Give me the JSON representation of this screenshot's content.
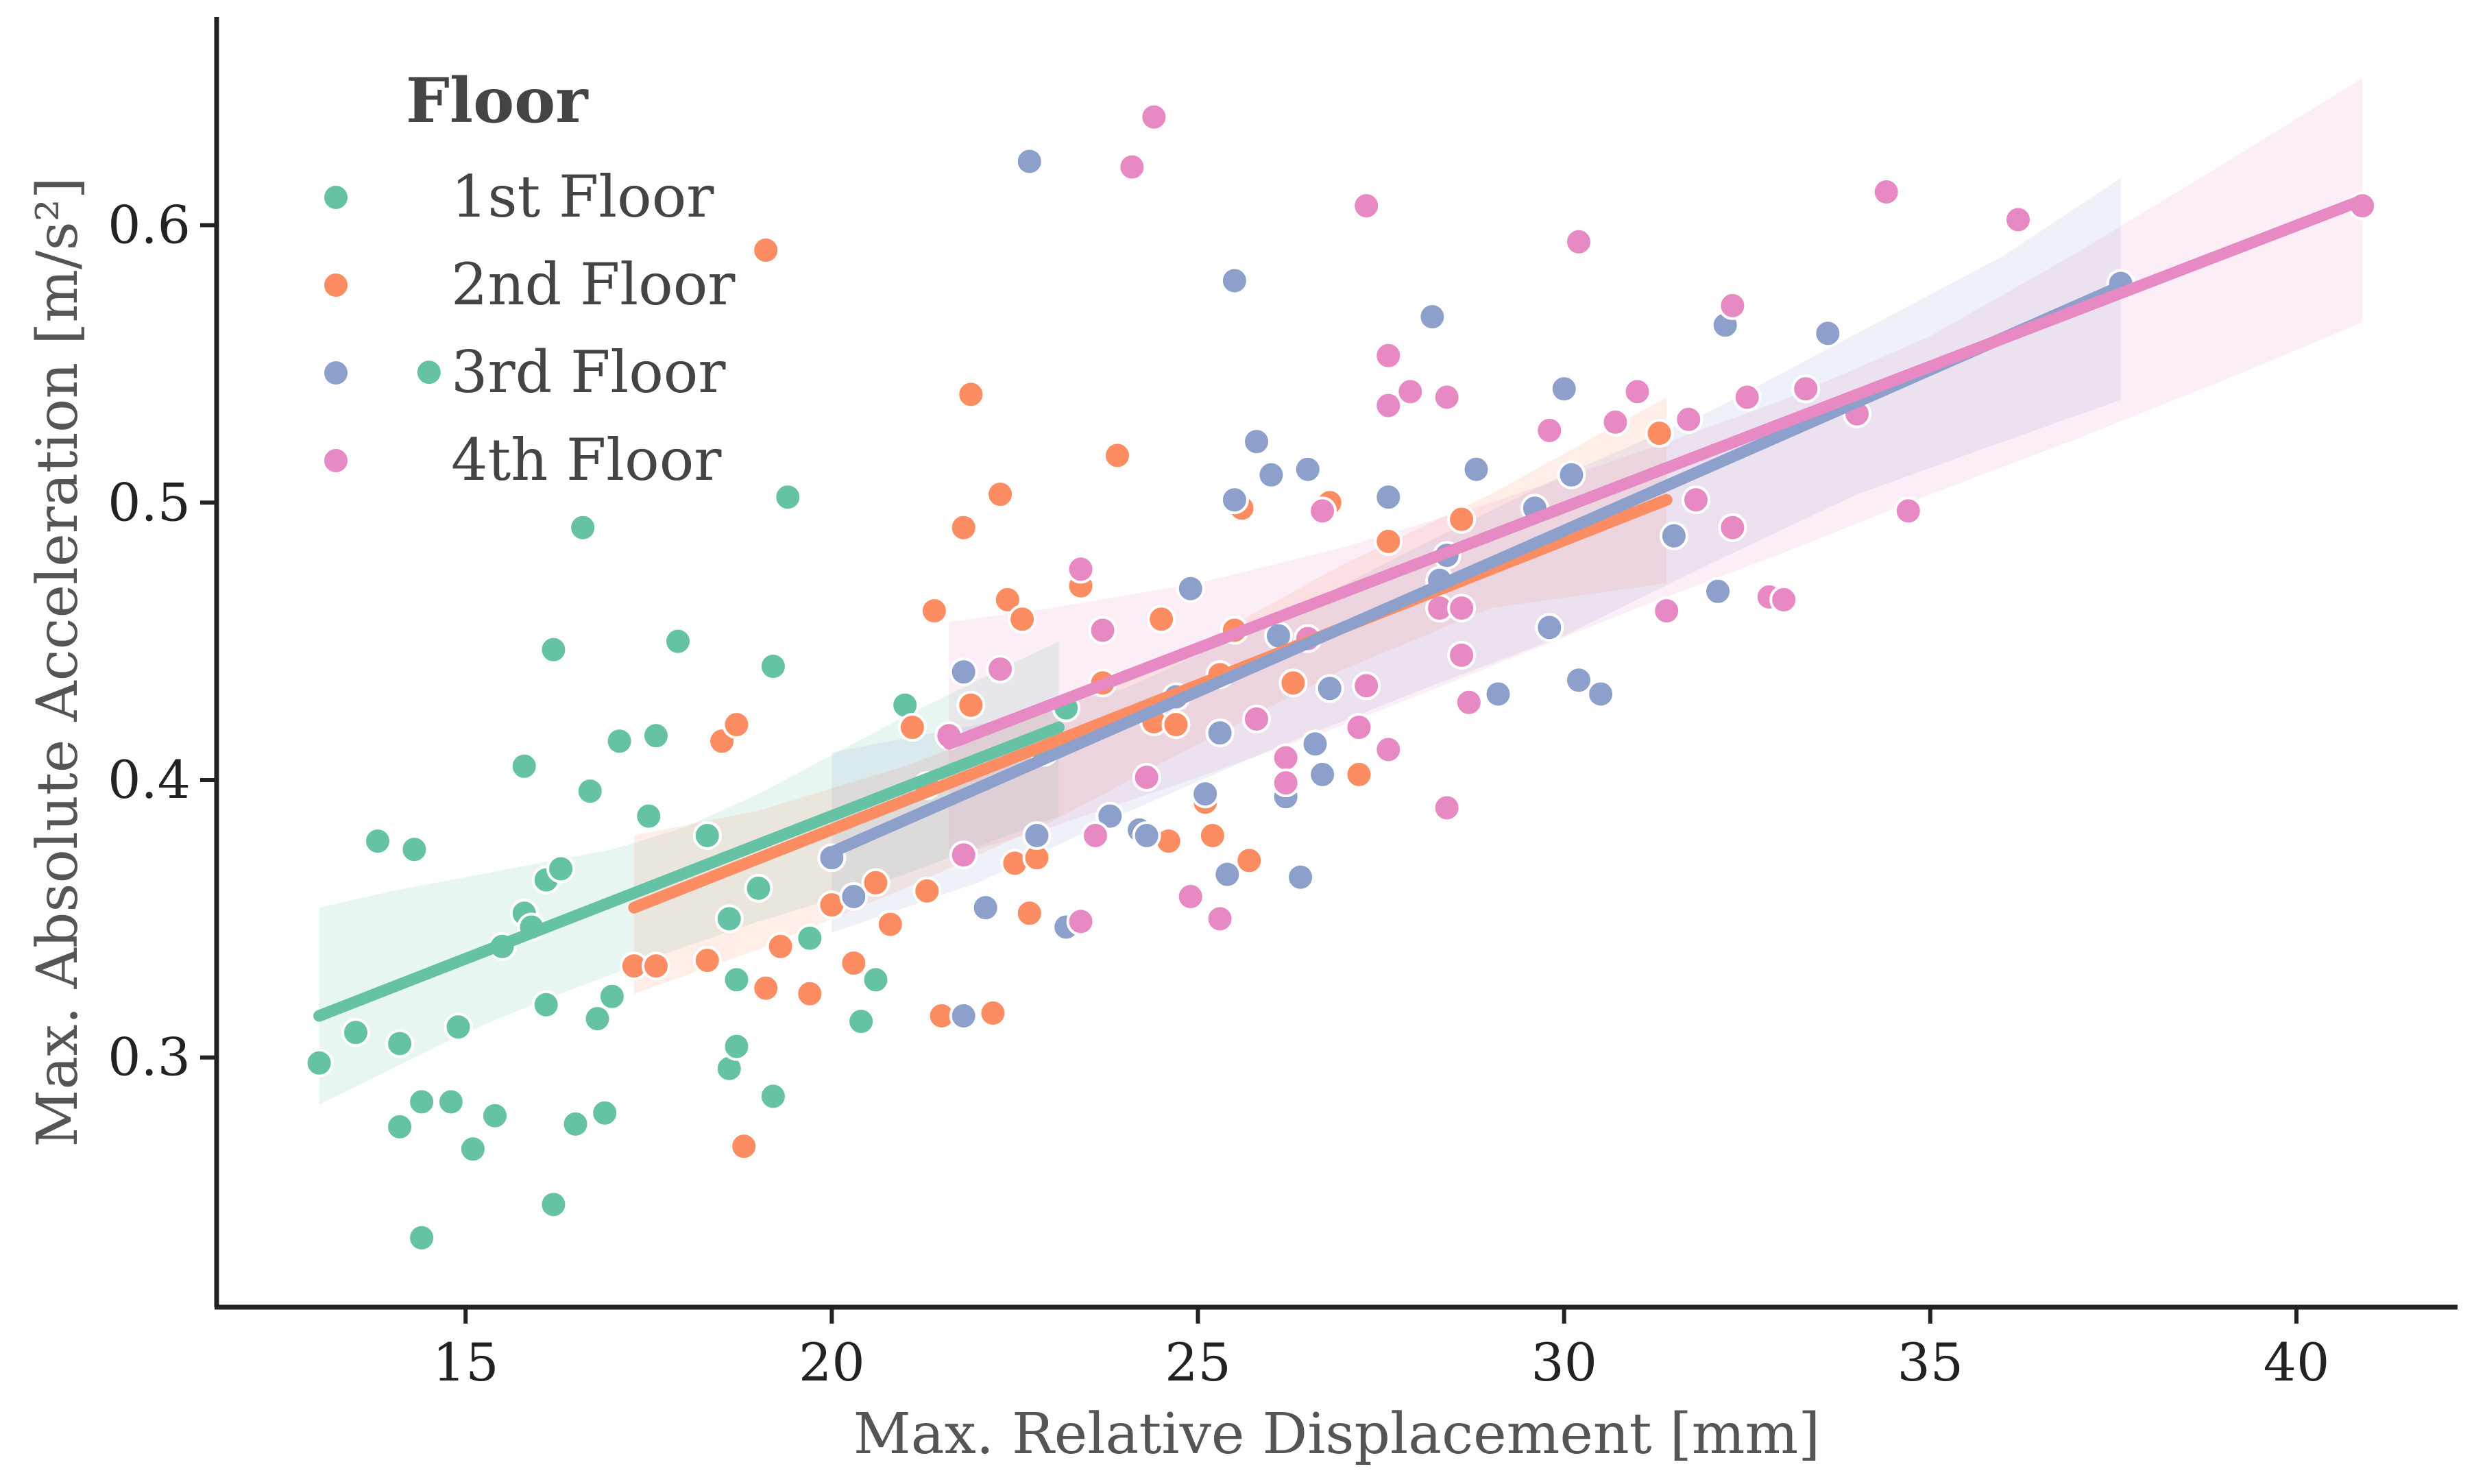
{
  "chart_data": {
    "type": "scatter",
    "title": "",
    "xlabel": "Max. Relative Displacement [mm]",
    "ylabel": "Max. Absolute Acceleration [m/s²]",
    "xlim": [
      11.6,
      42.2
    ],
    "ylim": [
      0.21,
      0.675
    ],
    "xticks": [
      15,
      20,
      25,
      30,
      35,
      40
    ],
    "yticks": [
      0.3,
      0.4,
      0.5,
      0.6
    ],
    "xtick_labels": [
      "15",
      "20",
      "25",
      "30",
      "35",
      "40"
    ],
    "ytick_labels": [
      "0.3",
      "0.4",
      "0.5",
      "0.6"
    ],
    "grid": false,
    "legend": {
      "title": "Floor",
      "position": "top-left"
    },
    "series": [
      {
        "name": "1st Floor",
        "color": "#66c2a5",
        "points": [
          [
            13.0,
            0.298
          ],
          [
            13.5,
            0.309
          ],
          [
            13.8,
            0.378
          ],
          [
            14.1,
            0.305
          ],
          [
            14.1,
            0.275
          ],
          [
            14.3,
            0.375
          ],
          [
            14.4,
            0.235
          ],
          [
            14.4,
            0.284
          ],
          [
            14.5,
            0.547
          ],
          [
            14.8,
            0.284
          ],
          [
            14.9,
            0.311
          ],
          [
            15.1,
            0.267
          ],
          [
            15.4,
            0.279
          ],
          [
            15.5,
            0.34
          ],
          [
            15.8,
            0.352
          ],
          [
            15.8,
            0.405
          ],
          [
            15.9,
            0.347
          ],
          [
            16.1,
            0.364
          ],
          [
            16.1,
            0.319
          ],
          [
            16.2,
            0.447
          ],
          [
            16.2,
            0.247
          ],
          [
            16.3,
            0.368
          ],
          [
            16.5,
            0.276
          ],
          [
            16.6,
            0.491
          ],
          [
            16.7,
            0.396
          ],
          [
            16.8,
            0.314
          ],
          [
            16.9,
            0.28
          ],
          [
            17.0,
            0.322
          ],
          [
            17.1,
            0.414
          ],
          [
            17.5,
            0.387
          ],
          [
            17.6,
            0.416
          ],
          [
            17.9,
            0.45
          ],
          [
            18.3,
            0.38
          ],
          [
            18.6,
            0.35
          ],
          [
            18.6,
            0.296
          ],
          [
            18.7,
            0.304
          ],
          [
            18.7,
            0.328
          ],
          [
            19.0,
            0.361
          ],
          [
            19.2,
            0.441
          ],
          [
            19.2,
            0.286
          ],
          [
            19.4,
            0.502
          ],
          [
            19.7,
            0.343
          ],
          [
            20.4,
            0.313
          ],
          [
            20.6,
            0.328
          ],
          [
            21.0,
            0.427
          ],
          [
            22.9,
            0.41
          ],
          [
            23.2,
            0.426
          ]
        ],
        "fit": {
          "x": [
            13.0,
            23.1
          ],
          "y": [
            0.315,
            0.419
          ]
        },
        "ci": {
          "x": [
            13.0,
            14.0,
            15.0,
            16.0,
            17.0,
            18.0,
            19.0,
            20.0,
            21.0,
            22.0,
            23.1
          ],
          "upper": [
            0.354,
            0.36,
            0.365,
            0.37,
            0.375,
            0.383,
            0.395,
            0.409,
            0.423,
            0.436,
            0.45
          ],
          "lower": [
            0.283,
            0.296,
            0.309,
            0.32,
            0.33,
            0.34,
            0.349,
            0.357,
            0.366,
            0.376,
            0.387
          ]
        }
      },
      {
        "name": "2nd Floor",
        "color": "#fc8d62",
        "points": [
          [
            17.3,
            0.333
          ],
          [
            17.6,
            0.333
          ],
          [
            18.3,
            0.335
          ],
          [
            18.5,
            0.414
          ],
          [
            18.7,
            0.42
          ],
          [
            18.8,
            0.268
          ],
          [
            19.1,
            0.325
          ],
          [
            19.1,
            0.591
          ],
          [
            19.3,
            0.34
          ],
          [
            19.7,
            0.323
          ],
          [
            20.0,
            0.355
          ],
          [
            20.3,
            0.334
          ],
          [
            20.6,
            0.363
          ],
          [
            20.8,
            0.348
          ],
          [
            21.1,
            0.419
          ],
          [
            21.3,
            0.398
          ],
          [
            21.3,
            0.36
          ],
          [
            21.4,
            0.461
          ],
          [
            21.5,
            0.315
          ],
          [
            21.8,
            0.491
          ],
          [
            21.9,
            0.427
          ],
          [
            21.9,
            0.539
          ],
          [
            22.2,
            0.316
          ],
          [
            22.3,
            0.503
          ],
          [
            22.4,
            0.465
          ],
          [
            22.5,
            0.37
          ],
          [
            22.6,
            0.458
          ],
          [
            22.7,
            0.352
          ],
          [
            22.8,
            0.372
          ],
          [
            23.4,
            0.47
          ],
          [
            23.7,
            0.435
          ],
          [
            23.9,
            0.517
          ],
          [
            24.4,
            0.421
          ],
          [
            24.5,
            0.458
          ],
          [
            24.6,
            0.378
          ],
          [
            24.7,
            0.42
          ],
          [
            25.1,
            0.392
          ],
          [
            25.2,
            0.38
          ],
          [
            25.3,
            0.438
          ],
          [
            25.5,
            0.454
          ],
          [
            25.6,
            0.498
          ],
          [
            25.7,
            0.371
          ],
          [
            26.3,
            0.435
          ],
          [
            26.8,
            0.5
          ],
          [
            27.2,
            0.402
          ],
          [
            27.6,
            0.486
          ],
          [
            28.6,
            0.494
          ],
          [
            31.3,
            0.525
          ]
        ],
        "fit": {
          "x": [
            17.3,
            31.4
          ],
          "y": [
            0.354,
            0.501
          ]
        },
        "ci": {
          "x": [
            17.3,
            19.0,
            21.0,
            23.0,
            25.0,
            27.0,
            29.0,
            31.4
          ],
          "upper": [
            0.38,
            0.389,
            0.405,
            0.425,
            0.449,
            0.478,
            0.503,
            0.538
          ],
          "lower": [
            0.323,
            0.339,
            0.361,
            0.385,
            0.413,
            0.44,
            0.462,
            0.471
          ]
        }
      },
      {
        "name": "3rd Floor",
        "color": "#8da0cb",
        "points": [
          [
            20.0,
            0.372
          ],
          [
            20.3,
            0.358
          ],
          [
            21.8,
            0.439
          ],
          [
            21.8,
            0.315
          ],
          [
            22.1,
            0.354
          ],
          [
            22.7,
            0.623
          ],
          [
            22.8,
            0.38
          ],
          [
            23.2,
            0.347
          ],
          [
            23.8,
            0.387
          ],
          [
            24.2,
            0.382
          ],
          [
            24.3,
            0.38
          ],
          [
            24.7,
            0.43
          ],
          [
            24.9,
            0.469
          ],
          [
            25.1,
            0.395
          ],
          [
            25.3,
            0.417
          ],
          [
            25.4,
            0.366
          ],
          [
            25.5,
            0.58
          ],
          [
            25.5,
            0.501
          ],
          [
            25.8,
            0.522
          ],
          [
            26.0,
            0.51
          ],
          [
            26.1,
            0.452
          ],
          [
            26.2,
            0.394
          ],
          [
            26.4,
            0.365
          ],
          [
            26.5,
            0.512
          ],
          [
            26.6,
            0.413
          ],
          [
            26.7,
            0.402
          ],
          [
            26.8,
            0.433
          ],
          [
            27.6,
            0.502
          ],
          [
            28.2,
            0.567
          ],
          [
            28.3,
            0.472
          ],
          [
            28.4,
            0.481
          ],
          [
            28.8,
            0.512
          ],
          [
            29.1,
            0.431
          ],
          [
            29.6,
            0.498
          ],
          [
            29.8,
            0.455
          ],
          [
            30.0,
            0.541
          ],
          [
            30.1,
            0.51
          ],
          [
            30.2,
            0.436
          ],
          [
            30.5,
            0.431
          ],
          [
            31.5,
            0.488
          ],
          [
            32.1,
            0.468
          ],
          [
            32.2,
            0.564
          ],
          [
            33.6,
            0.561
          ],
          [
            37.6,
            0.579
          ]
        ],
        "fit": {
          "x": [
            20.0,
            37.6
          ],
          "y": [
            0.374,
            0.578
          ]
        },
        "ci": {
          "x": [
            20.0,
            22.0,
            24.0,
            26.0,
            28.0,
            30.0,
            32.0,
            34.0,
            36.0,
            37.6
          ],
          "upper": [
            0.41,
            0.42,
            0.433,
            0.457,
            0.484,
            0.51,
            0.533,
            0.561,
            0.589,
            0.617
          ],
          "lower": [
            0.345,
            0.363,
            0.388,
            0.411,
            0.432,
            0.452,
            0.478,
            0.503,
            0.522,
            0.537
          ]
        }
      },
      {
        "name": "4th Floor",
        "color": "#e78ac3",
        "points": [
          [
            21.6,
            0.416
          ],
          [
            21.8,
            0.373
          ],
          [
            22.3,
            0.44
          ],
          [
            23.4,
            0.476
          ],
          [
            23.4,
            0.349
          ],
          [
            23.6,
            0.38
          ],
          [
            23.7,
            0.454
          ],
          [
            24.1,
            0.621
          ],
          [
            24.3,
            0.401
          ],
          [
            24.4,
            0.639
          ],
          [
            24.9,
            0.358
          ],
          [
            25.3,
            0.35
          ],
          [
            25.8,
            0.422
          ],
          [
            26.2,
            0.408
          ],
          [
            26.2,
            0.399
          ],
          [
            26.5,
            0.451
          ],
          [
            26.7,
            0.497
          ],
          [
            27.2,
            0.419
          ],
          [
            27.3,
            0.607
          ],
          [
            27.3,
            0.434
          ],
          [
            27.6,
            0.553
          ],
          [
            27.6,
            0.535
          ],
          [
            27.6,
            0.411
          ],
          [
            27.9,
            0.54
          ],
          [
            28.3,
            0.462
          ],
          [
            28.4,
            0.538
          ],
          [
            28.4,
            0.39
          ],
          [
            28.6,
            0.445
          ],
          [
            28.6,
            0.462
          ],
          [
            28.7,
            0.428
          ],
          [
            29.8,
            0.526
          ],
          [
            30.2,
            0.594
          ],
          [
            30.7,
            0.529
          ],
          [
            31.0,
            0.54
          ],
          [
            31.4,
            0.461
          ],
          [
            31.7,
            0.53
          ],
          [
            31.8,
            0.501
          ],
          [
            32.3,
            0.571
          ],
          [
            32.3,
            0.491
          ],
          [
            32.5,
            0.538
          ],
          [
            32.8,
            0.466
          ],
          [
            33.0,
            0.465
          ],
          [
            33.3,
            0.541
          ],
          [
            34.0,
            0.532
          ],
          [
            34.4,
            0.612
          ],
          [
            34.7,
            0.497
          ],
          [
            36.2,
            0.602
          ],
          [
            40.9,
            0.607
          ]
        ],
        "fit": {
          "x": [
            21.6,
            40.9
          ],
          "y": [
            0.413,
            0.609
          ]
        },
        "ci": {
          "x": [
            21.6,
            23.0,
            25.0,
            27.0,
            29.0,
            31.0,
            33.0,
            35.0,
            37.0,
            39.0,
            40.9
          ],
          "upper": [
            0.457,
            0.462,
            0.471,
            0.484,
            0.5,
            0.518,
            0.537,
            0.56,
            0.59,
            0.622,
            0.653
          ],
          "lower": [
            0.372,
            0.383,
            0.401,
            0.42,
            0.441,
            0.462,
            0.482,
            0.503,
            0.523,
            0.544,
            0.565
          ]
        }
      }
    ]
  }
}
